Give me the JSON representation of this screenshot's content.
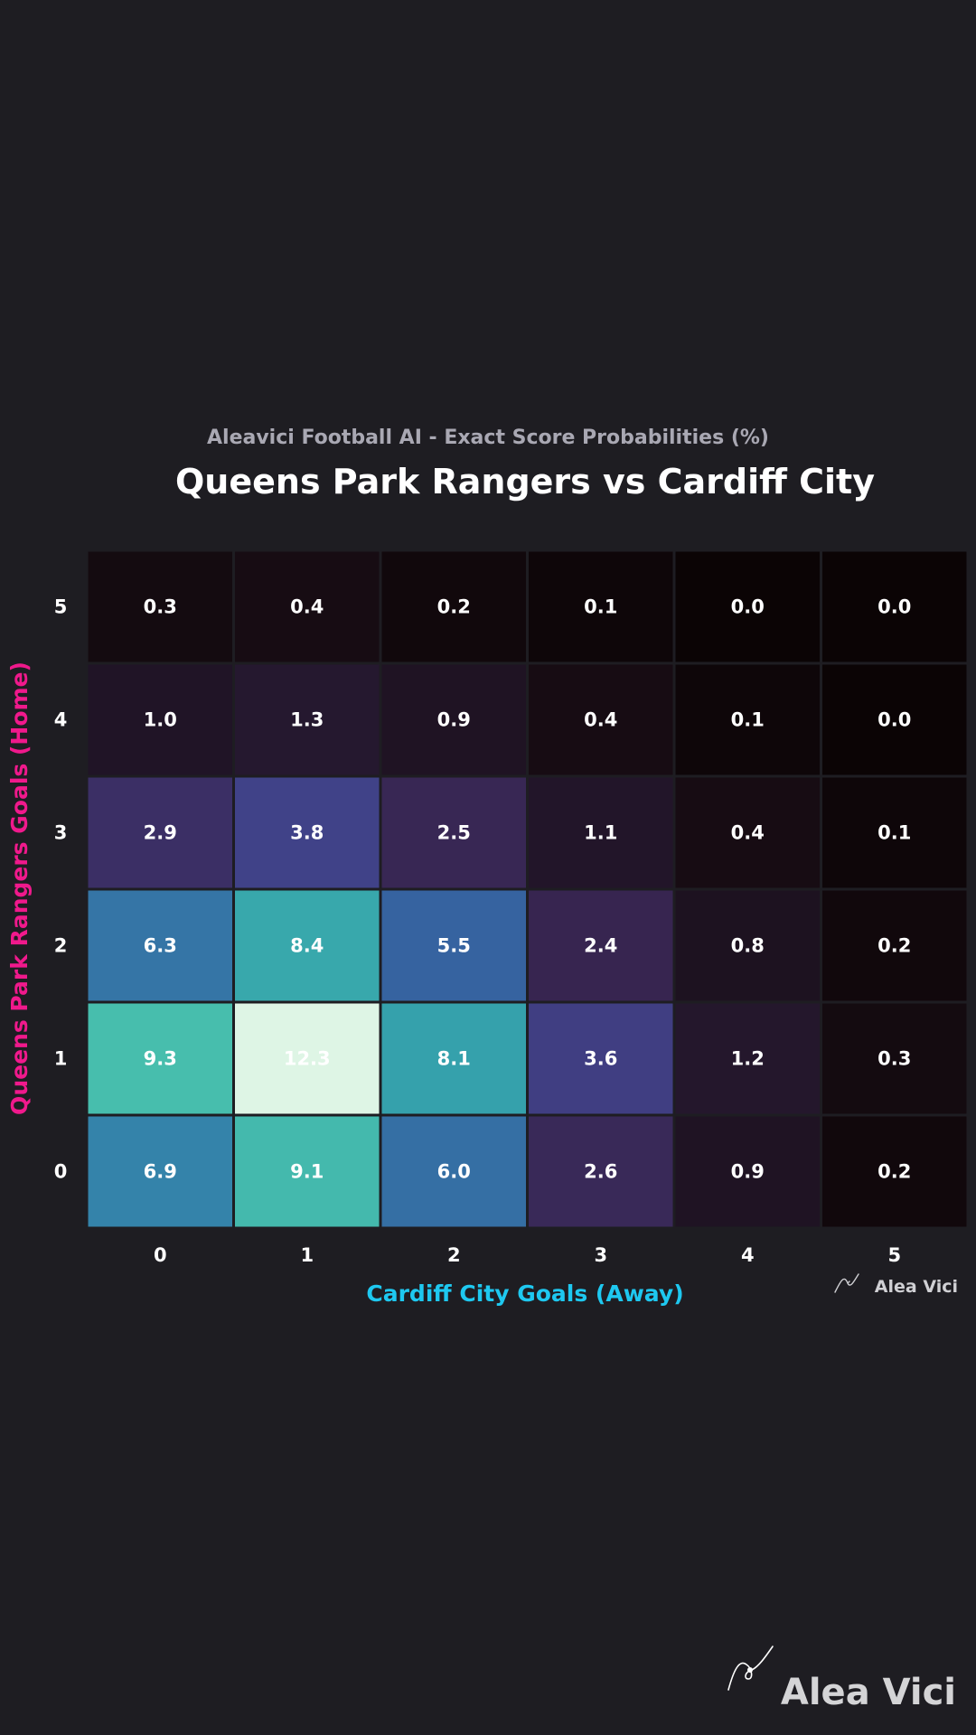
{
  "chart_data": {
    "type": "heatmap",
    "subtitle": "Aleavici Football AI - Exact Score Probabilities (%)",
    "title": "Queens Park Rangers vs Cardiff City",
    "xlabel": "Cardiff City Goals (Away)",
    "ylabel": "Queens Park Rangers Goals (Home)",
    "x_categories": [
      "0",
      "1",
      "2",
      "3",
      "4",
      "5"
    ],
    "y_categories": [
      "5",
      "4",
      "3",
      "2",
      "1",
      "0"
    ],
    "values": [
      [
        0.3,
        0.4,
        0.2,
        0.1,
        0.0,
        0.0
      ],
      [
        1.0,
        1.3,
        0.9,
        0.4,
        0.1,
        0.0
      ],
      [
        2.9,
        3.8,
        2.5,
        1.1,
        0.4,
        0.1
      ],
      [
        6.3,
        8.4,
        5.5,
        2.4,
        0.8,
        0.2
      ],
      [
        9.3,
        12.3,
        8.1,
        3.6,
        1.2,
        0.3
      ],
      [
        6.9,
        9.1,
        6.0,
        2.6,
        0.9,
        0.2
      ]
    ],
    "value_range": [
      0,
      12.3
    ],
    "colormap": "mako",
    "grid": false,
    "colorbar": false
  },
  "watermark": {
    "small_text": "Alea Vici",
    "large_text": "Alea Vici",
    "icon": "signature-icon"
  },
  "colors": {
    "background": "#1e1d22",
    "xlabel": "#1ec8f0",
    "ylabel": "#f0198c",
    "cell_border": "#1e1d22"
  }
}
